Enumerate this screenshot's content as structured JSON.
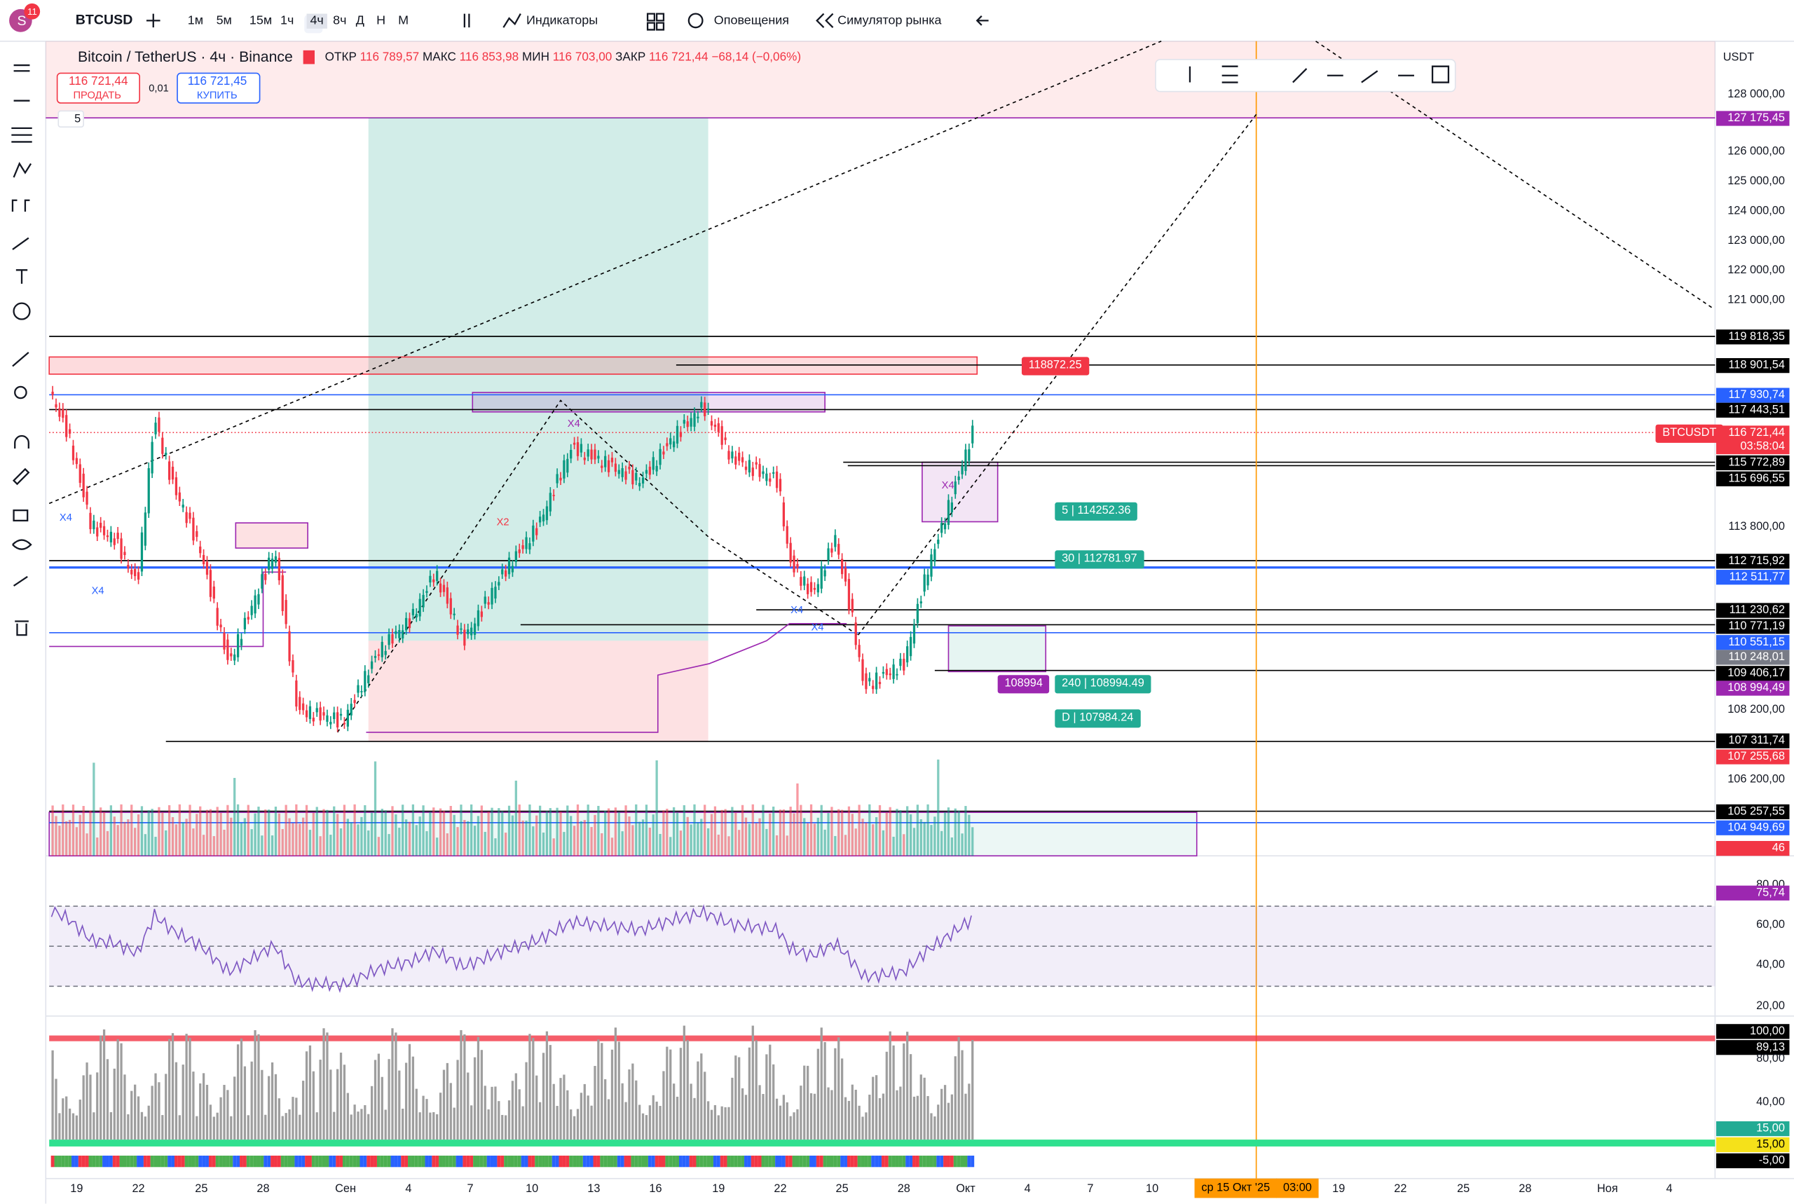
{
  "toolbar": {
    "avatar": "S",
    "badge": "11",
    "symbol": "BTCUSD",
    "intervals": [
      "1м",
      "5м",
      "15м",
      "1ч",
      "4ч",
      "8ч",
      "Д",
      "Н",
      "М"
    ],
    "indicators": "Индикаторы",
    "alerts": "Оповещения",
    "replay": "Симулятор рынка"
  },
  "legend": {
    "title": "Bitcoin / TetherUS · 4ч · Binance",
    "open_label": "ОТКР",
    "open": "116 789,57",
    "high_label": "МАКС",
    "high": "116 853,98",
    "low_label": "МИН",
    "low": "116 703,00",
    "close_label": "ЗАКР",
    "close": "116 721,44",
    "change": "−68,14 (−0,06%)",
    "sell_price": "116 721,44",
    "sell": "ПРОДАТЬ",
    "spread": "0,01",
    "buy_price": "116 721,45",
    "buy": "КУПИТЬ",
    "collapsed_count": "5"
  },
  "price_scale": {
    "currency": "USDT",
    "labels": [
      "128 000,00",
      "127 175,45",
      "126 000,00",
      "125 000,00",
      "124 000,00",
      "123 000,00",
      "122 000,00",
      "121 000,00",
      "119 818,35",
      "118 901,54",
      "117 930,74",
      "117 443,51",
      "116 721,44",
      "03:58:04",
      "115 772,89",
      "115 696,55",
      "113 800,00",
      "112 715,92",
      "112 511,77",
      "111 230,62",
      "110 771,19",
      "110 551,15",
      "110 248,01",
      "109 406,17",
      "108 994,49",
      "108 200,00",
      "107 311,74",
      "107 255,68",
      "106 200,00",
      "105 257,55",
      "104 949,69",
      "46",
      "80,00",
      "75,74",
      "60,00",
      "40,00",
      "20,00",
      "100,00",
      "89,13",
      "80,00",
      "40,00",
      "15,00",
      "15,00",
      "-5,00"
    ]
  },
  "time_scale": {
    "labels": [
      "19",
      "22",
      "25",
      "28",
      "Сен",
      "4",
      "7",
      "10",
      "13",
      "16",
      "19",
      "22",
      "25",
      "28",
      "Окт",
      "4",
      "7",
      "10",
      "ср 15 Окт '25",
      "03:00",
      "19",
      "22",
      "25",
      "28",
      "Ноя",
      "4"
    ]
  },
  "tags": [
    "118872.25",
    "5 | 114252.36",
    "30 | 112781.97",
    "240 | 108994.49",
    "D | 107984.24",
    "108994",
    "BTCUSDT"
  ],
  "annotations": [
    "X4",
    "X4",
    "X4",
    "X4",
    "X4",
    "X4",
    "X2"
  ]
}
